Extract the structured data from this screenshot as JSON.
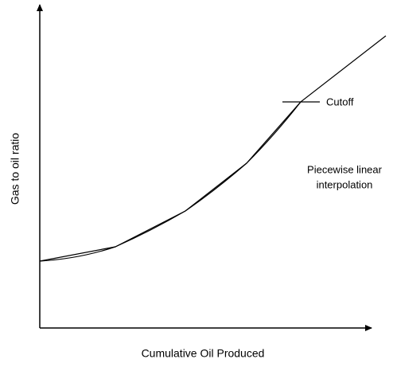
{
  "x_label": "Cumulative Oil Produced",
  "y_label": "Gas to oil ratio",
  "annotations": {
    "cutoff": "Cutoff",
    "interpolation": [
      "Piecewise linear",
      "interpolation"
    ]
  }
}
